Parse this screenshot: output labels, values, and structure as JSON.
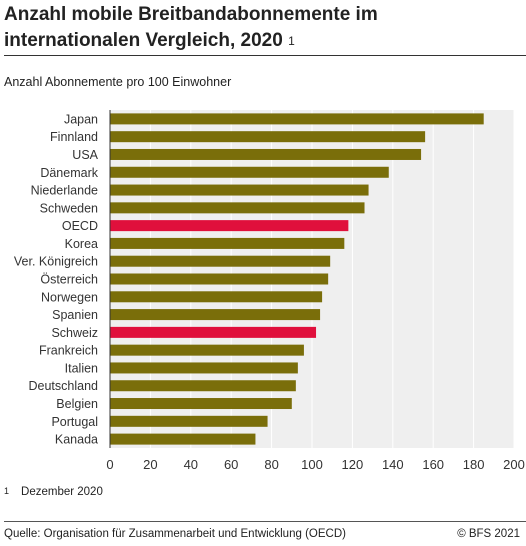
{
  "title": "Anzahl mobile Breitbandabonnemente im internationalen Vergleich, 2020",
  "title_footnote": "1",
  "footnote_mark": "1",
  "footnote_text": "Dezember 2020",
  "source": "Quelle: Organisation für Zusammenarbeit und Entwicklung (OECD)",
  "copyright": "© BFS 2021",
  "colors": {
    "bar": "#7a6e0a",
    "highlight": "#e0103c",
    "plot_bg": "#efefef",
    "grid": "#ffffff"
  },
  "chart_data": {
    "type": "bar",
    "orientation": "horizontal",
    "title": "Anzahl mobile Breitbandabonnemente im internationalen Vergleich, 2020",
    "subtitle": "Anzahl Abonnemente pro 100 Einwohner",
    "xlabel": "",
    "ylabel": "",
    "xlim": [
      0,
      200
    ],
    "xticks": [
      0,
      20,
      40,
      60,
      80,
      100,
      120,
      140,
      160,
      180,
      200
    ],
    "grid": true,
    "categories": [
      "Japan",
      "Finnland",
      "USA",
      "Dänemark",
      "Niederlande",
      "Schweden",
      "OECD",
      "Korea",
      "Ver. Königreich",
      "Österreich",
      "Norwegen",
      "Spanien",
      "Schweiz",
      "Frankreich",
      "Italien",
      "Deutschland",
      "Belgien",
      "Portugal",
      "Kanada"
    ],
    "values": [
      185,
      156,
      154,
      138,
      128,
      126,
      118,
      116,
      109,
      108,
      105,
      104,
      102,
      96,
      93,
      92,
      90,
      78,
      72
    ],
    "highlighted": [
      "OECD",
      "Schweiz"
    ]
  }
}
